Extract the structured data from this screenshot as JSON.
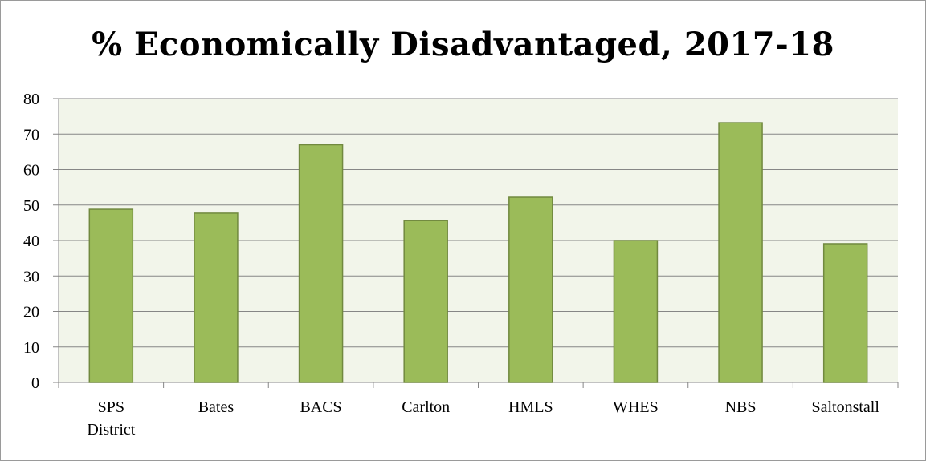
{
  "chart_data": {
    "type": "bar",
    "title": "% Economically Disadvantaged, 2017-18",
    "categories": [
      [
        "SPS",
        "District"
      ],
      [
        "Bates"
      ],
      [
        "BACS"
      ],
      [
        "Carlton"
      ],
      [
        "HMLS"
      ],
      [
        "WHES"
      ],
      [
        "NBS"
      ],
      [
        "Saltonstall"
      ]
    ],
    "values": [
      48.8,
      47.7,
      67.0,
      45.6,
      52.2,
      40.0,
      73.2,
      39.1
    ],
    "ylim": [
      0,
      80
    ],
    "yticks": [
      "0",
      "10",
      "20",
      "30",
      "40",
      "50",
      "60",
      "70",
      "80"
    ],
    "grid": true,
    "colors": {
      "bar_fill": "#9bbb59",
      "bar_stroke": "#71893f",
      "plot_bg": "#f2f5ea",
      "grid": "#868686"
    }
  }
}
